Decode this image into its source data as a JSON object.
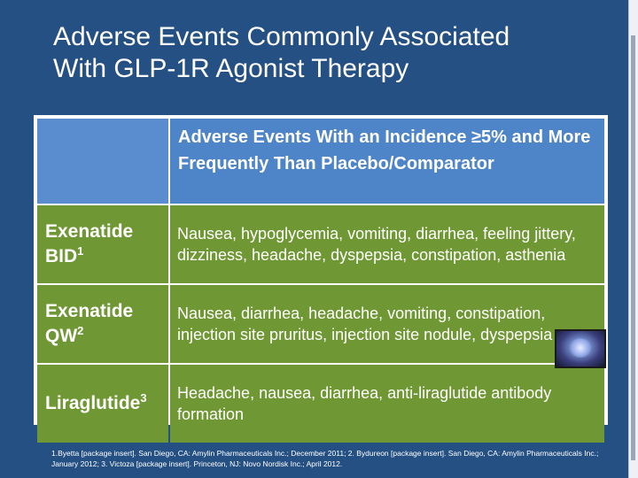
{
  "title": {
    "line1": "Adverse Events Commonly Associated",
    "line2": "With GLP-1R Agonist Therapy"
  },
  "table": {
    "header": "Adverse Events With an Incidence ≥5% and More Frequently Than Placebo/Comparator",
    "rows": [
      {
        "drug": "Exenatide BID",
        "ref": "1",
        "events": "Nausea, hypoglycemia, vomiting, diarrhea, feeling jittery, dizziness, headache, dyspepsia, constipation, asthenia"
      },
      {
        "drug": "Exenatide QW",
        "ref": "2",
        "events": "Nausea, diarrhea, headache, vomiting, constipation, injection site pruritus, injection site nodule, dyspepsia"
      },
      {
        "drug": "Liraglutide",
        "ref": "3",
        "events": "Headache, nausea, diarrhea, anti-liraglutide antibody formation"
      }
    ]
  },
  "footnote": "1.Byetta [package insert]. San Diego, CA: Amylin Pharmaceuticals Inc.; December 2011; 2. Bydureon [package insert]. San Diego, CA: Amylin Pharmaceuticals Inc.; January 2012; 3. Victoza [package insert]. Princeton, NJ: Novo Nordisk Inc.; April 2012.",
  "colors": {
    "background": "#255083",
    "header_cell": "#4e84c8",
    "row_cell": "#6f9734"
  }
}
